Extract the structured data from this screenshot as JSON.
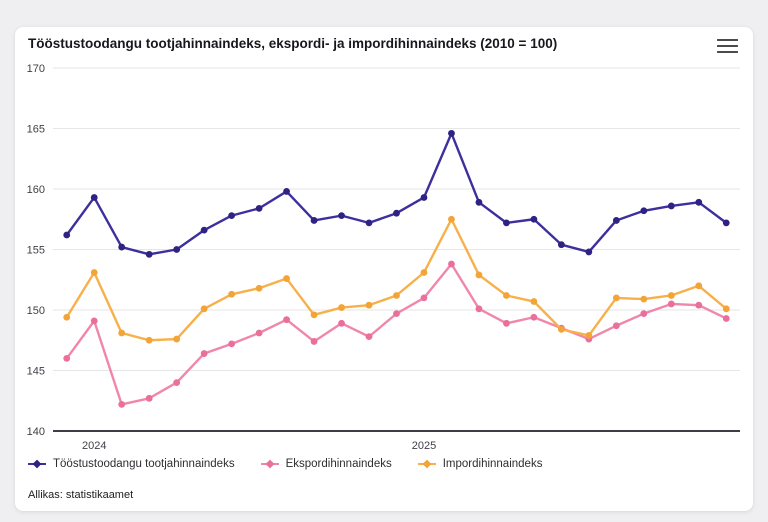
{
  "header": {
    "title": "Tööstustoodangu tootjahinnaindeks, ekspordi- ja impordihinnaindeks (2010 = 100)"
  },
  "icons": {
    "context_menu": "hamburger-menu-icon"
  },
  "footer": {
    "source": "Allikas: statistikaamet"
  },
  "chart_data": {
    "type": "line",
    "title": "Tööstustoodangu tootjahinnaindeks, ekspordi- ja impordihinnaindeks (2010 = 100)",
    "ylim": [
      140,
      170
    ],
    "y_ticks": [
      140,
      145,
      150,
      155,
      160,
      165,
      170
    ],
    "x_ticks": [
      {
        "index": 1,
        "label": "2024"
      },
      {
        "index": 13,
        "label": "2025"
      }
    ],
    "grid": true,
    "legend_position": "bottom",
    "n_points": 25,
    "series": [
      {
        "name": "Tööstustoodangu tootjahinnaindeks",
        "color": "#3d2f9e",
        "marker_color": "#2e2382",
        "values": [
          156.2,
          159.3,
          155.2,
          154.6,
          155.0,
          156.6,
          157.8,
          158.4,
          159.8,
          157.4,
          157.8,
          157.2,
          158.0,
          159.3,
          164.6,
          158.9,
          157.2,
          157.5,
          155.4,
          154.8,
          157.4,
          158.2,
          158.6,
          158.9,
          157.2
        ]
      },
      {
        "name": "Ekspordihinnaindeks",
        "color": "#f087ab",
        "marker_color": "#ea6f9d",
        "values": [
          146.0,
          149.1,
          142.2,
          142.7,
          144.0,
          146.4,
          147.2,
          148.1,
          149.2,
          147.4,
          148.9,
          147.8,
          149.7,
          151.0,
          153.8,
          150.1,
          148.9,
          149.4,
          148.5,
          147.6,
          148.7,
          149.7,
          150.5,
          150.4,
          149.3
        ]
      },
      {
        "name": "Impordihinnaindeks",
        "color": "#f7b04a",
        "marker_color": "#f3a437",
        "values": [
          149.4,
          153.1,
          148.1,
          147.5,
          147.6,
          150.1,
          151.3,
          151.8,
          152.6,
          149.6,
          150.2,
          150.4,
          151.2,
          153.1,
          157.5,
          152.9,
          151.2,
          150.7,
          148.4,
          147.9,
          151.0,
          150.9,
          151.2,
          152.0,
          150.1
        ]
      }
    ]
  }
}
